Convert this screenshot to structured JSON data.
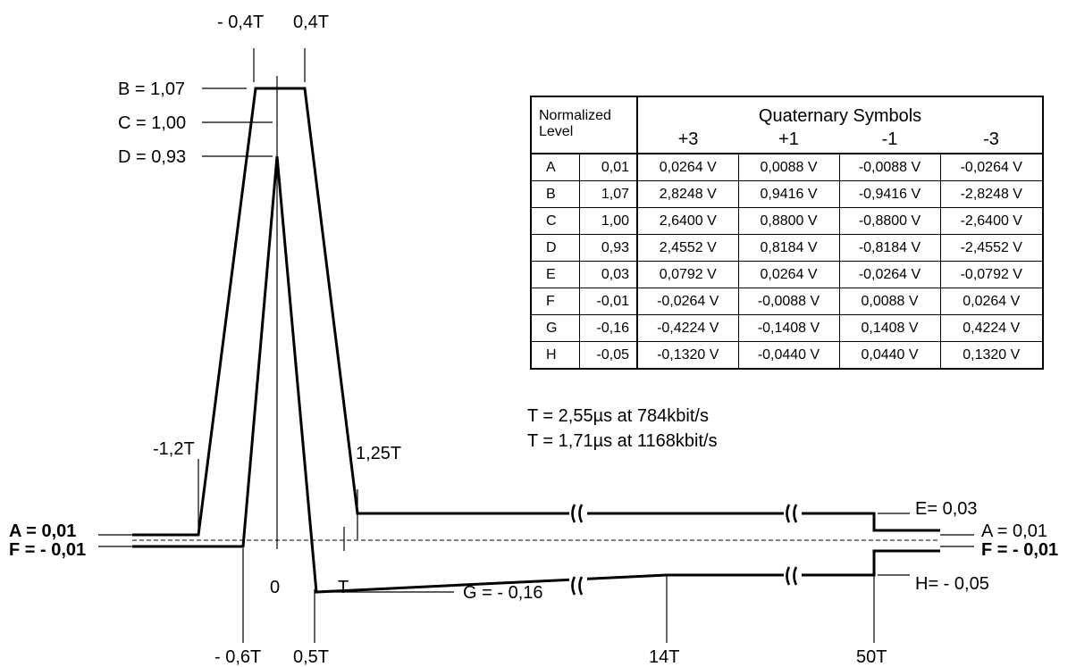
{
  "pulse_labels": {
    "minus_04T": "- 0,4T",
    "plus_04T": "0,4T",
    "B": "B = 1,07",
    "C": "C = 1,00",
    "D": "D = 0,93",
    "minus_12T": "-1,2T",
    "t_125": "1,25T",
    "A_left": "A =   0,01",
    "F_left": "F = - 0,01",
    "zero": "0",
    "T": "T",
    "G": "G = - 0,16",
    "minus_06T": "- 0,6T",
    "t_05": "0,5T",
    "t_14": "14T",
    "t_50": "50T",
    "E": "E=   0,03",
    "H": "H= - 0,05",
    "A_right": "A =   0,01",
    "F_right": "F = - 0,01"
  },
  "timing_notes": [
    "T = 2,55µs at 784kbit/s",
    "T = 1,71µs at 1168kbit/s"
  ],
  "table": {
    "norm_header_line1": "Normalized",
    "norm_header_line2": "Level",
    "quaternary_header": "Quaternary Symbols",
    "symbols": [
      "+3",
      "+1",
      "-1",
      "-3"
    ],
    "rows": [
      {
        "letter": "A",
        "level": "0,01",
        "values": [
          "0,0264 V",
          "0,0088 V",
          "-0,0088 V",
          "-0,0264 V"
        ]
      },
      {
        "letter": "B",
        "level": "1,07",
        "values": [
          "2,8248 V",
          "0,9416 V",
          "-0,9416 V",
          "-2,8248 V"
        ]
      },
      {
        "letter": "C",
        "level": "1,00",
        "values": [
          "2,6400 V",
          "0,8800 V",
          "-0,8800 V",
          "-2,6400 V"
        ]
      },
      {
        "letter": "D",
        "level": "0,93",
        "values": [
          "2,4552 V",
          "0,8184 V",
          "-0,8184 V",
          "-2,4552 V"
        ]
      },
      {
        "letter": "E",
        "level": "0,03",
        "values": [
          "0,0792 V",
          "0,0264 V",
          "-0,0264 V",
          "-0,0792 V"
        ]
      },
      {
        "letter": "F",
        "level": "-0,01",
        "values": [
          "-0,0264 V",
          "-0,0088 V",
          "0,0088 V",
          "0,0264 V"
        ]
      },
      {
        "letter": "G",
        "level": "-0,16",
        "values": [
          "-0,4224 V",
          "-0,1408 V",
          "0,1408 V",
          "0,4224 V"
        ]
      },
      {
        "letter": "H",
        "level": "-0,05",
        "values": [
          "-0,1320 V",
          "-0,0440 V",
          "0,0440 V",
          "0,1320 V"
        ]
      }
    ]
  }
}
